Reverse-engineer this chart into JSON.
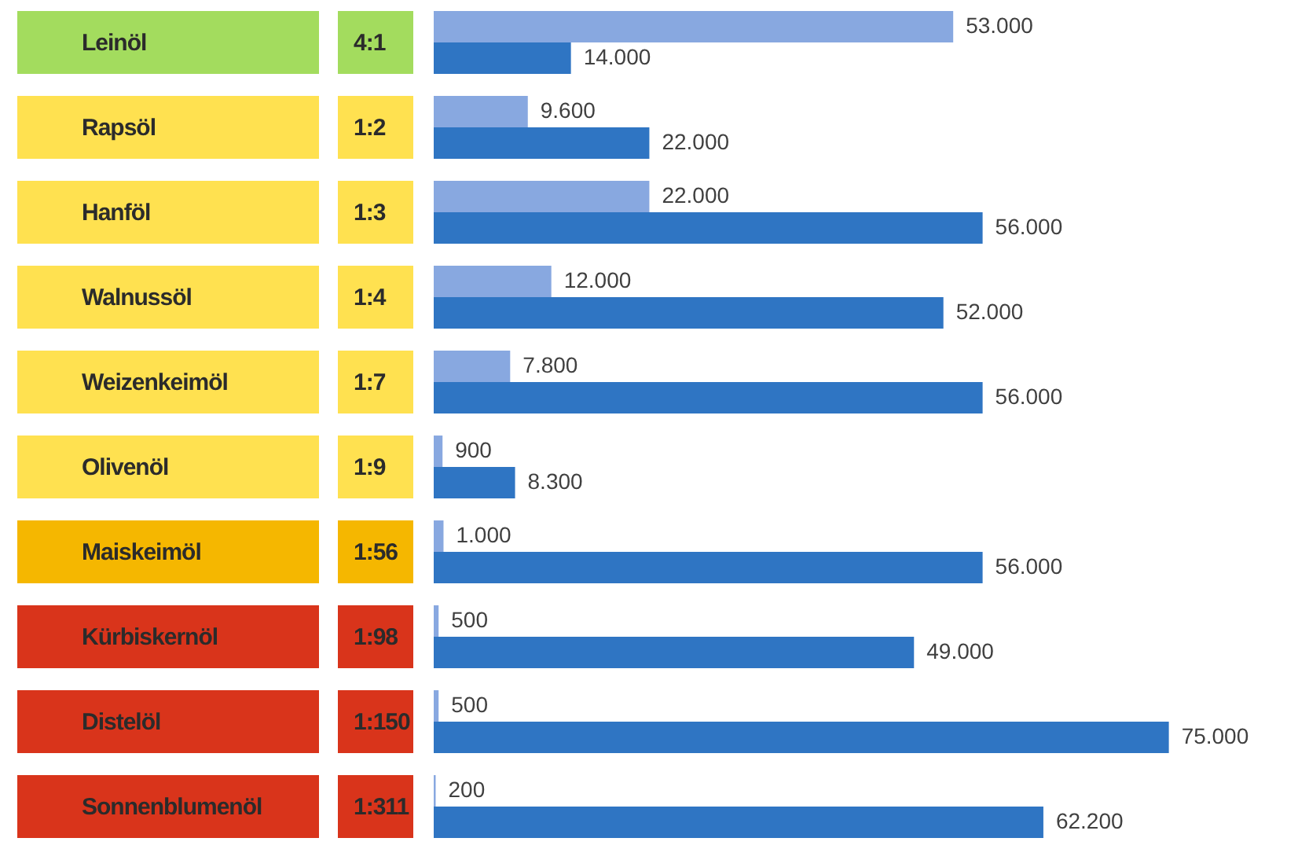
{
  "chart_data": {
    "type": "bar",
    "orientation": "horizontal",
    "legend": false,
    "tick_labels": "y",
    "categories": [
      "Leinöl",
      "Rapsöl",
      "Hanföl",
      "Walnussöl",
      "Weizenkeimöl",
      "Olivenöl",
      "Maiskeimöl",
      "Kürbiskernöl",
      "Distelöl",
      "Sonnenblumenöl"
    ],
    "series": [
      {
        "color": "#88a8e0",
        "values": [
          53000,
          9600,
          22000,
          12000,
          7800,
          900,
          1000,
          500,
          500,
          200
        ],
        "value_labels": [
          "53.000",
          "9.600",
          "22.000",
          "12.000",
          "7.800",
          "900",
          "1.000",
          "500",
          "500",
          "200"
        ]
      },
      {
        "color": "#2f75c3",
        "values": [
          14000,
          22000,
          56000,
          52000,
          56000,
          8300,
          56000,
          49000,
          75000,
          62200
        ],
        "value_labels": [
          "14.000",
          "22.000",
          "56.000",
          "52.000",
          "56.000",
          "8.300",
          "56.000",
          "49.000",
          "75.000",
          "62.200"
        ]
      }
    ],
    "annotations": [
      "4:1",
      "1:2",
      "1:3",
      "1:4",
      "1:7",
      "1:9",
      "1:56",
      "1:98",
      "1:150",
      "1:311"
    ]
  }
}
